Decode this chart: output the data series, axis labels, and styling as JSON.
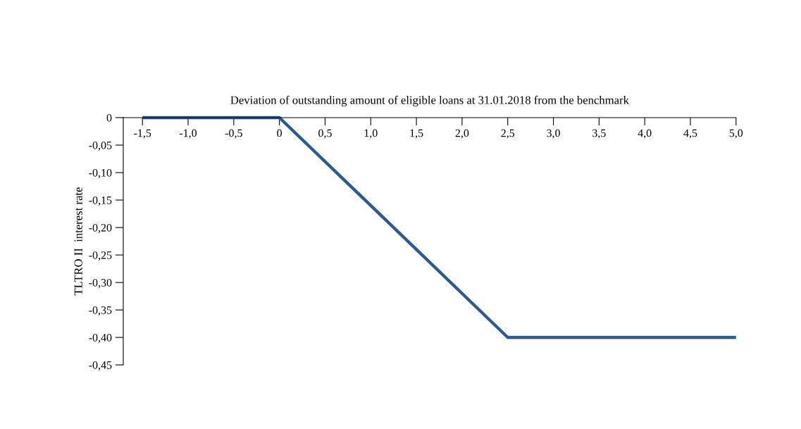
{
  "chart_data": {
    "type": "line",
    "title": "Deviation of outstanding amount of eligible loans at 31.01.2018 from the benchmark",
    "ylabel": "TLTRO II  interest rate",
    "x": [
      -1.5,
      0,
      2.5,
      5.0
    ],
    "series": [
      {
        "color": "#2f5a8e",
        "values": [
          0,
          0,
          -0.4,
          -0.4
        ]
      }
    ],
    "xlim": [
      -1.71,
      5.0
    ],
    "xticks": [
      {
        "value": -1.5,
        "label": "-1,5"
      },
      {
        "value": -1.0,
        "label": "-1,0"
      },
      {
        "value": -0.5,
        "label": "-0,5"
      },
      0,
      {
        "value": 0.5,
        "label": "0,5"
      },
      {
        "value": 1.0,
        "label": "1,0"
      },
      {
        "value": 1.5,
        "label": "1,5"
      },
      {
        "value": 2.0,
        "label": "2,0"
      },
      {
        "value": 2.5,
        "label": "2,5"
      },
      {
        "value": 3.0,
        "label": "3,0"
      },
      {
        "value": 3.5,
        "label": "3,5"
      },
      {
        "value": 4.0,
        "label": "4,0"
      },
      {
        "value": 4.5,
        "label": "4,5"
      },
      {
        "value": 5.0,
        "label": "5,0"
      }
    ],
    "ylim": [
      -0.45,
      0
    ],
    "yticks": [
      0,
      {
        "value": -0.05,
        "label": "-0,05"
      },
      {
        "value": -0.1,
        "label": "-0,10"
      },
      {
        "value": -0.15,
        "label": "-0,15"
      },
      {
        "value": -0.2,
        "label": "-0,20"
      },
      {
        "value": -0.25,
        "label": "-0,25"
      },
      {
        "value": -0.3,
        "label": "-0,30"
      },
      {
        "value": -0.35,
        "label": "-0,35"
      },
      {
        "value": -0.4,
        "label": "-0,40"
      },
      {
        "value": -0.45,
        "label": "-0,45"
      }
    ],
    "grid": false,
    "marker": "none",
    "line_style": "solid"
  }
}
